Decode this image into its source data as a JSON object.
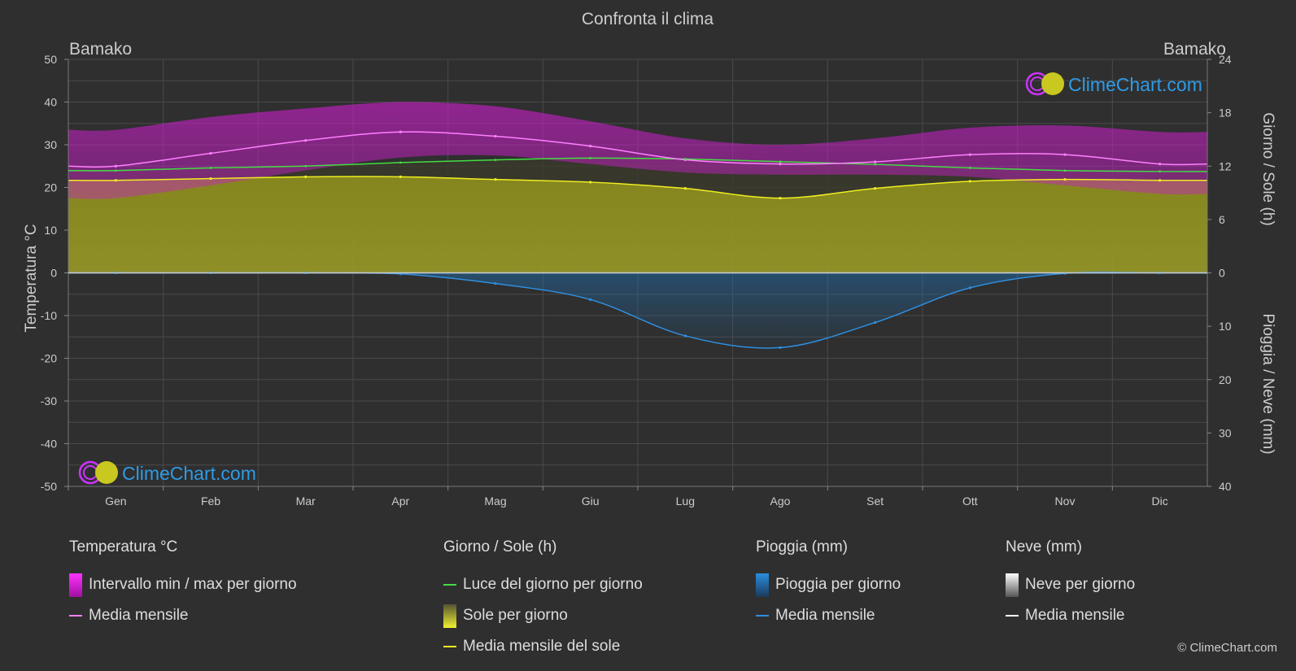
{
  "chart_data": {
    "type": "line",
    "title": "Confronta il clima",
    "location_left": "Bamako",
    "location_right": "Bamako",
    "categories": [
      "Gen",
      "Feb",
      "Mar",
      "Apr",
      "Mag",
      "Giu",
      "Lug",
      "Ago",
      "Set",
      "Ott",
      "Nov",
      "Dic"
    ],
    "ylabel_left": "Temperatura °C",
    "ylabel_right_top": "Giorno / Sole (h)",
    "ylabel_right_bottom": "Pioggia / Neve (mm)",
    "ylim_left": [
      -50,
      50
    ],
    "yticks_left": [
      "50",
      "40",
      "30",
      "20",
      "10",
      "0",
      "-10",
      "-20",
      "-30",
      "-40",
      "-50"
    ],
    "yticks_right_top": [
      "24",
      "18",
      "12",
      "6",
      "0"
    ],
    "yticks_right_bottom": [
      "0",
      "10",
      "20",
      "30",
      "40"
    ],
    "grid": true,
    "series": [
      {
        "name": "Media mensile",
        "group": "Temperatura °C",
        "unit": "°C",
        "color": "#ff80ff",
        "values": [
          25.0,
          28.0,
          31.0,
          33.0,
          32.0,
          29.7,
          26.5,
          25.5,
          26.0,
          27.7,
          27.7,
          25.5
        ]
      },
      {
        "name": "Intervallo min / max per giorno",
        "group": "Temperatura °C",
        "unit": "°C",
        "color": "#e020e0",
        "min": [
          17.5,
          20.5,
          24.0,
          27.0,
          27.5,
          25.5,
          23.5,
          23.0,
          23.0,
          22.5,
          20.5,
          18.5
        ],
        "max": [
          33.5,
          36.5,
          38.5,
          40.0,
          39.0,
          35.5,
          31.5,
          30.0,
          31.5,
          34.0,
          34.5,
          33.0
        ]
      },
      {
        "name": "Luce del giorno per giorno",
        "group": "Giorno / Sole (h)",
        "unit": "h",
        "color": "#44dd44",
        "values": [
          11.5,
          11.8,
          12.0,
          12.4,
          12.7,
          12.9,
          12.8,
          12.5,
          12.2,
          11.8,
          11.5,
          11.4
        ]
      },
      {
        "name": "Media mensile del sole",
        "group": "Giorno / Sole (h)",
        "unit": "h",
        "color": "#eeee22",
        "values": [
          10.4,
          10.6,
          10.8,
          10.8,
          10.5,
          10.2,
          9.5,
          8.4,
          9.5,
          10.3,
          10.5,
          10.4
        ]
      },
      {
        "name": "Media mensile",
        "group": "Pioggia (mm)",
        "unit": "mm",
        "color": "#2e8fe0",
        "values": [
          0.0,
          0.0,
          0.0,
          0.2,
          2.0,
          5.0,
          11.8,
          14.0,
          9.3,
          2.8,
          0.1,
          0.0
        ]
      },
      {
        "name": "Media mensile",
        "group": "Neve (mm)",
        "unit": "mm",
        "color": "#ffffff",
        "values": [
          0,
          0,
          0,
          0,
          0,
          0,
          0,
          0,
          0,
          0,
          0,
          0
        ]
      }
    ]
  },
  "watermark": {
    "text": "ClimeChart.com"
  },
  "legend": {
    "temp": {
      "title": "Temperatura °C",
      "range": "Intervallo min / max per giorno",
      "mean": "Media mensile"
    },
    "sun": {
      "title": "Giorno / Sole (h)",
      "daylight": "Luce del giorno per giorno",
      "sunshine": "Sole per giorno",
      "sun_mean": "Media mensile del sole"
    },
    "rain": {
      "title": "Pioggia (mm)",
      "per_day": "Pioggia per giorno",
      "mean": "Media mensile"
    },
    "snow": {
      "title": "Neve (mm)",
      "per_day": "Neve per giorno",
      "mean": "Media mensile"
    }
  },
  "copyright": "© ClimeChart.com",
  "colors": {
    "background": "#2f2f2f",
    "brand_text": "#2e9be6",
    "logo_magenta": "#cc33ff",
    "logo_yellow": "#e0e020"
  }
}
